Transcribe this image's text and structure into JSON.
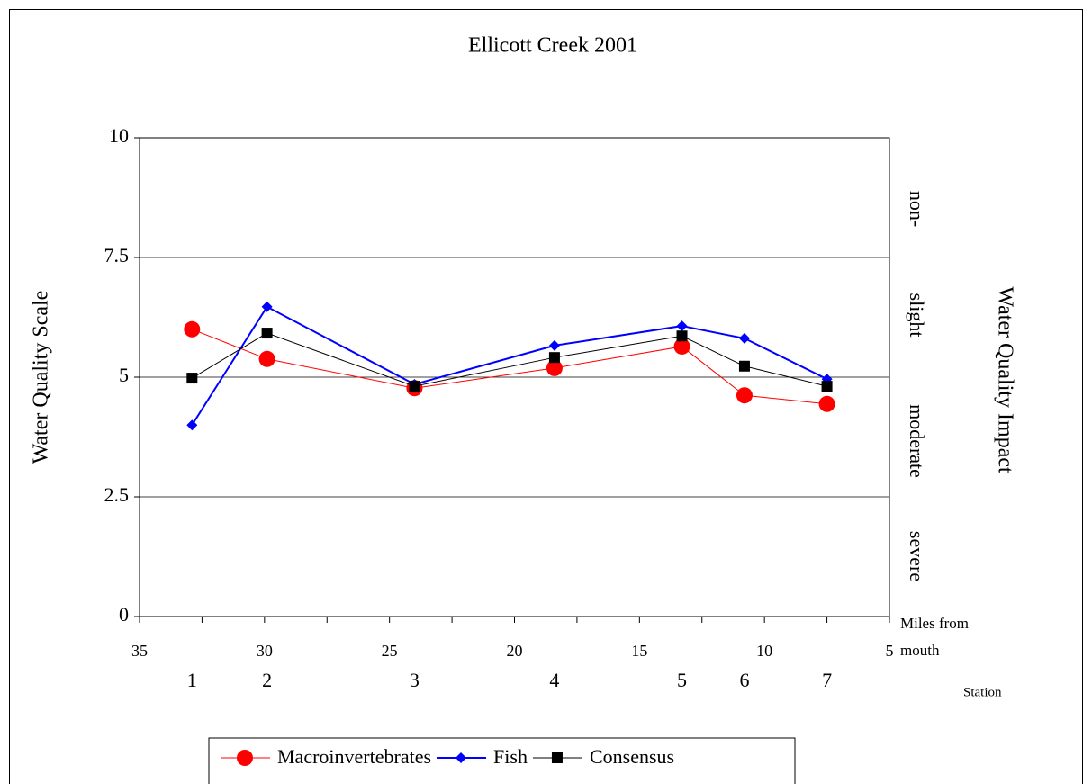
{
  "chart_data": {
    "type": "line",
    "title": "Ellicott Creek 2001",
    "y_label": "Water Quality Scale",
    "y2_label": "Water Quality Impact",
    "x_label": "Miles from mouth",
    "station_label": "Station",
    "zone_labels": [
      "non-",
      "slight",
      "moderate",
      "severe"
    ],
    "stations": [
      "1",
      "2",
      "3",
      "4",
      "5",
      "6",
      "7"
    ],
    "x": [
      32.9,
      29.9,
      24.0,
      18.4,
      13.3,
      10.8,
      7.5
    ],
    "series": [
      {
        "name": "Macroinvertebrates",
        "color": "#ff0000",
        "marker": "circle",
        "values": [
          6.0,
          5.38,
          4.77,
          5.19,
          5.64,
          4.62,
          4.44
        ]
      },
      {
        "name": "Fish",
        "color": "#0000ff",
        "marker": "diamond",
        "values": [
          4.0,
          6.47,
          4.85,
          5.66,
          6.07,
          5.81,
          4.96
        ]
      },
      {
        "name": "Consensus",
        "color": "#000000",
        "marker": "square",
        "values": [
          4.98,
          5.92,
          4.81,
          5.41,
          5.86,
          5.23,
          4.81
        ]
      }
    ],
    "xlim": [
      35,
      5
    ],
    "xticks": [
      35,
      30,
      25,
      20,
      15,
      10,
      5
    ],
    "xminorticks": [
      32.5,
      27.5,
      22.5,
      17.5,
      12.5,
      7.5
    ],
    "ylim": [
      0,
      10
    ],
    "yticks": [
      0,
      2.5,
      5,
      7.5,
      10
    ],
    "grid": true,
    "legend": "bottom"
  }
}
